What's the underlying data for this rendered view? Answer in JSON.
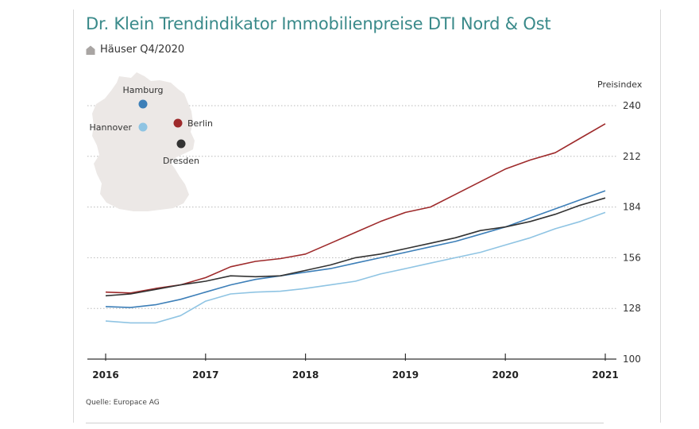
{
  "header": {
    "title": "Dr. Klein Trendindikator Immobilienpreise DTI Nord & Ost",
    "subtitle": "Häuser Q4/2020",
    "subtitle_icon": "house-icon"
  },
  "source": "Quelle: Europace AG",
  "colors": {
    "title": "#3a8a8a",
    "Berlin": "#9e2a2b",
    "Hamburg": "#3d7fb8",
    "Hannover": "#8fc4e3",
    "Dresden": "#333333",
    "map": "#ece8e6"
  },
  "map": {
    "cities": [
      {
        "name": "Hamburg",
        "color": "#3d7fb8"
      },
      {
        "name": "Berlin",
        "color": "#9e2a2b"
      },
      {
        "name": "Hannover",
        "color": "#8fc4e3"
      },
      {
        "name": "Dresden",
        "color": "#333333"
      }
    ]
  },
  "chart_data": {
    "type": "line",
    "title": "Dr. Klein Trendindikator Immobilienpreise DTI Nord & Ost",
    "subtitle": "Häuser Q4/2020",
    "ylabel": "Preisindex",
    "xlabel": "",
    "xlim": [
      2016,
      2021
    ],
    "ylim": [
      100,
      240
    ],
    "yticks": [
      100,
      128,
      156,
      184,
      212,
      240
    ],
    "xticks": [
      2016,
      2017,
      2018,
      2019,
      2020,
      2021
    ],
    "x_tick_labels": [
      "2016",
      "2017",
      "2018",
      "2019",
      "2020",
      "2021"
    ],
    "y_tick_labels": [
      "100",
      "128",
      "156",
      "184",
      "212",
      "240"
    ],
    "grid": "horizontal dotted",
    "legend": "map-inset top-left",
    "x": [
      2016,
      2016.25,
      2016.5,
      2016.75,
      2017,
      2017.25,
      2017.5,
      2017.75,
      2018,
      2018.25,
      2018.5,
      2018.75,
      2019,
      2019.25,
      2019.5,
      2019.75,
      2020,
      2020.25,
      2020.5,
      2020.75,
      2021
    ],
    "series": [
      {
        "name": "Berlin",
        "color": "#9e2a2b",
        "values": [
          137,
          136.5,
          139,
          141,
          145,
          151,
          154,
          155.5,
          158,
          164,
          170,
          176,
          181,
          184,
          191,
          198,
          205,
          210,
          214,
          222,
          230
        ]
      },
      {
        "name": "Hamburg",
        "color": "#3d7fb8",
        "values": [
          129,
          128.5,
          130,
          133,
          137,
          141,
          144,
          146,
          148,
          150,
          153,
          156,
          159,
          162,
          165,
          169,
          173,
          178,
          183,
          188,
          193
        ]
      },
      {
        "name": "Dresden",
        "color": "#333333",
        "values": [
          135,
          136,
          138.5,
          141,
          143,
          146,
          145.5,
          146,
          149,
          152,
          156,
          158,
          161,
          164,
          167,
          171,
          173,
          176,
          180,
          185,
          189
        ]
      },
      {
        "name": "Hannover",
        "color": "#8fc4e3",
        "values": [
          121,
          120,
          120,
          124,
          132,
          136,
          137,
          137.5,
          139,
          141,
          143,
          147,
          150,
          153,
          156,
          159,
          163,
          167,
          172,
          176,
          181
        ]
      }
    ]
  }
}
